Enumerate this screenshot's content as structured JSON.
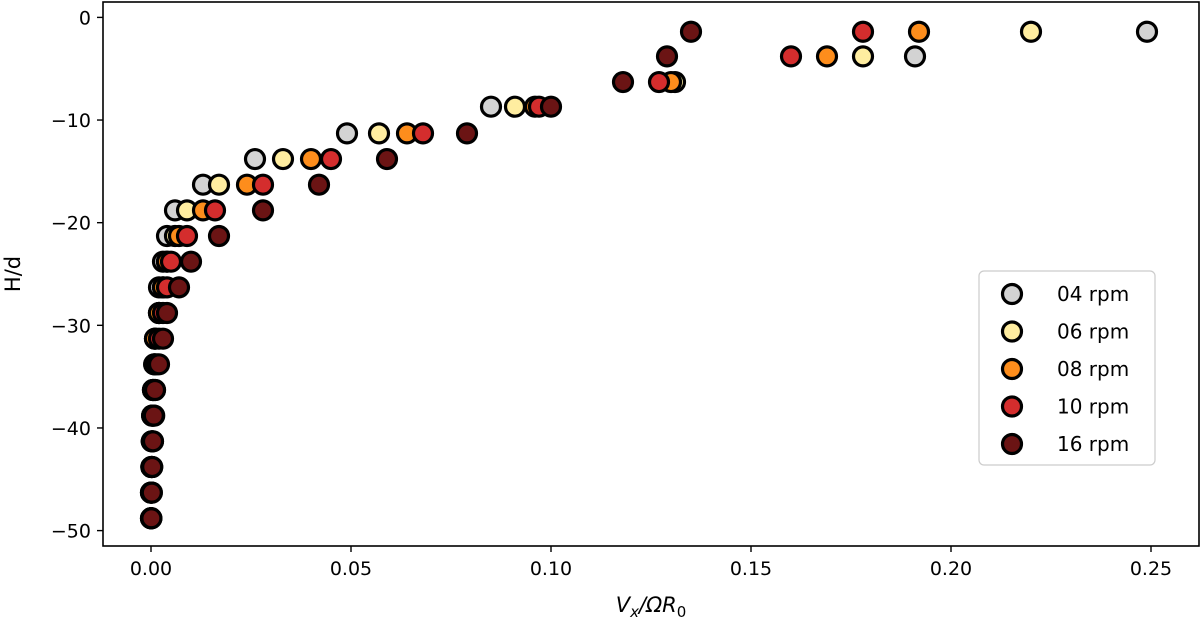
{
  "chart_data": {
    "type": "scatter",
    "title": "",
    "xlabel": {
      "base": "V",
      "sub1": "x",
      "mid": "/ΩR",
      "sub2": "0"
    },
    "ylabel": "H/d",
    "xlim": [
      -0.012,
      0.262
    ],
    "ylim": [
      -51.5,
      1.5
    ],
    "xticks": [
      0.0,
      0.05,
      0.1,
      0.15,
      0.2,
      0.25
    ],
    "xtick_labels": [
      "0.00",
      "0.05",
      "0.10",
      "0.15",
      "0.20",
      "0.25"
    ],
    "yticks": [
      0,
      -10,
      -20,
      -30,
      -40,
      -50
    ],
    "ytick_labels": [
      "0",
      "−10",
      "−20",
      "−30",
      "−40",
      "−50"
    ],
    "grid": false,
    "legend_position": "right",
    "series": [
      {
        "name": "04 rpm",
        "color": "#d3d3d3",
        "x": [
          0.249,
          0.191,
          0.085,
          0.049,
          0.026,
          0.013,
          0.006,
          0.004,
          0.003,
          0.002,
          0.002,
          0.001,
          0.001,
          0.0005,
          0.0003,
          0.0002,
          0.0001,
          0.0,
          0.0,
          0.0,
          0.0
        ],
        "y": [
          -1.4,
          -3.8,
          -8.7,
          -11.3,
          -13.8,
          -16.3,
          -18.8,
          -21.3,
          -23.8,
          -26.3,
          -28.8,
          -31.3,
          -33.8,
          -36.3,
          -38.8,
          -41.3,
          -43.8,
          -46.3,
          -48.8,
          -48.8,
          -48.8
        ]
      },
      {
        "name": "06 rpm",
        "color": "#ffeda0",
        "x": [
          0.22,
          0.178,
          0.131,
          0.091,
          0.057,
          0.033,
          0.017,
          0.009,
          0.006,
          0.004,
          0.003,
          0.002,
          0.001,
          0.0008,
          0.0005,
          0.0003,
          0.0002,
          0.0001,
          0.0
        ],
        "y": [
          -1.4,
          -3.8,
          -6.3,
          -8.7,
          -11.3,
          -13.8,
          -16.3,
          -18.8,
          -21.3,
          -23.8,
          -26.3,
          -28.8,
          -31.3,
          -33.8,
          -36.3,
          -38.8,
          -41.3,
          -43.8,
          -46.3
        ]
      },
      {
        "name": "08 rpm",
        "color": "#fd8d1c",
        "x": [
          0.192,
          0.169,
          0.13,
          0.096,
          0.064,
          0.04,
          0.024,
          0.013,
          0.007,
          0.004,
          0.003,
          0.002,
          0.001,
          0.0008,
          0.0005,
          0.0003,
          0.0002,
          0.0001,
          0.0
        ],
        "y": [
          -1.4,
          -3.8,
          -6.3,
          -8.7,
          -11.3,
          -13.8,
          -16.3,
          -18.8,
          -21.3,
          -23.8,
          -26.3,
          -28.8,
          -31.3,
          -33.8,
          -36.3,
          -38.8,
          -41.3,
          -43.8,
          -46.3
        ]
      },
      {
        "name": "10 rpm",
        "color": "#d42d2d",
        "x": [
          0.178,
          0.16,
          0.127,
          0.097,
          0.068,
          0.045,
          0.028,
          0.016,
          0.009,
          0.005,
          0.004,
          0.003,
          0.002,
          0.0015,
          0.001,
          0.0008,
          0.0005,
          0.0003,
          0.0002,
          0.0001
        ],
        "y": [
          -1.4,
          -3.8,
          -6.3,
          -8.7,
          -11.3,
          -13.8,
          -16.3,
          -18.8,
          -21.3,
          -23.8,
          -26.3,
          -28.8,
          -31.3,
          -33.8,
          -36.3,
          -38.8,
          -41.3,
          -43.8,
          -46.3,
          -48.8
        ]
      },
      {
        "name": "16 rpm",
        "color": "#6b1414",
        "x": [
          0.135,
          0.129,
          0.118,
          0.1,
          0.079,
          0.059,
          0.042,
          0.028,
          0.017,
          0.01,
          0.007,
          0.004,
          0.003,
          0.002,
          0.001,
          0.0007,
          0.0005,
          0.0003,
          0.0002,
          0.0001
        ],
        "y": [
          -1.4,
          -3.8,
          -6.3,
          -8.7,
          -11.3,
          -13.8,
          -16.3,
          -18.8,
          -21.3,
          -23.8,
          -26.3,
          -28.8,
          -31.3,
          -33.8,
          -36.3,
          -38.8,
          -41.3,
          -43.8,
          -46.3,
          -48.8
        ]
      }
    ]
  }
}
